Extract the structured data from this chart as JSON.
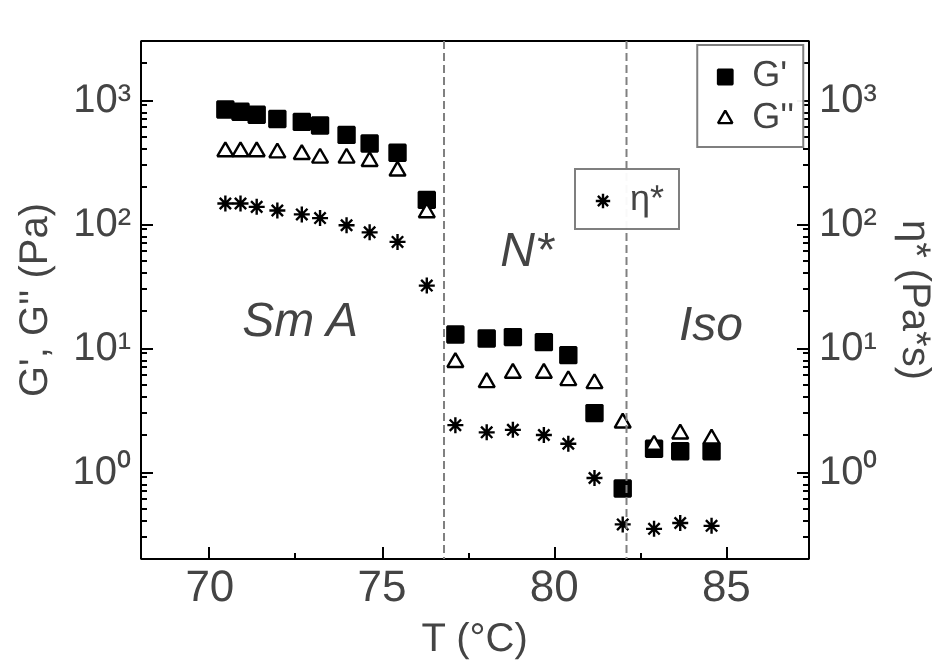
{
  "chart_data": {
    "type": "scatter",
    "xlabel": "T (°C)",
    "ylabel": "G', G'' (Pa)",
    "y2label": "η* (Pa*s)",
    "x": [
      70.45,
      70.89,
      71.36,
      71.96,
      72.67,
      73.2,
      73.97,
      74.64,
      75.45,
      76.3,
      77.13,
      78.04,
      78.8,
      79.7,
      80.41,
      81.17,
      81.99,
      82.9,
      83.66,
      84.57
    ],
    "series": [
      {
        "name": "G'",
        "color": "#000000",
        "marker": "square",
        "values": [
          841,
          807,
          764,
          705,
          668,
          625,
          525,
          448,
          377,
          157,
          12.9,
          12.0,
          12.3,
          11.2,
          8.8,
          3.0,
          0.74,
          1.55,
          1.48,
          1.48
        ]
      },
      {
        "name": "G''",
        "color": "#000000",
        "marker": "triangle",
        "values": [
          385,
          385,
          385,
          377,
          366,
          342,
          342,
          321,
          269,
          124,
          7.7,
          5.3,
          6.3,
          6.3,
          5.5,
          5.2,
          2.5,
          1.66,
          2.04,
          1.86
        ]
      },
      {
        "name": "η*",
        "color": "#000000",
        "marker": "cross",
        "values": [
          147,
          147,
          138,
          129,
          120,
          112,
          98,
          86,
          72,
          32,
          2.4,
          2.1,
          2.2,
          2.0,
          1.7,
          0.9,
          0.38,
          0.35,
          0.39,
          0.37
        ]
      }
    ],
    "xlim": [
      68,
      87.4
    ],
    "xticks": [
      70,
      75,
      80,
      85
    ],
    "ylim": [
      0.2,
      3000
    ],
    "yticks": [
      {
        "value": 1,
        "label": "10⁰"
      },
      {
        "value": 10,
        "label": "10¹"
      },
      {
        "value": 100,
        "label": "10²"
      },
      {
        "value": 1000,
        "label": "10³"
      }
    ],
    "log": true,
    "grid": false,
    "legend": "top right",
    "ref_lines": [
      {
        "axis": "x",
        "value": 76.8,
        "color": "#808080",
        "line_style": "dashed"
      },
      {
        "axis": "x",
        "value": 82.1,
        "color": "#808080",
        "line_style": "dashed"
      }
    ],
    "annotations": [
      "Sm A",
      "N*",
      "Iso"
    ]
  }
}
